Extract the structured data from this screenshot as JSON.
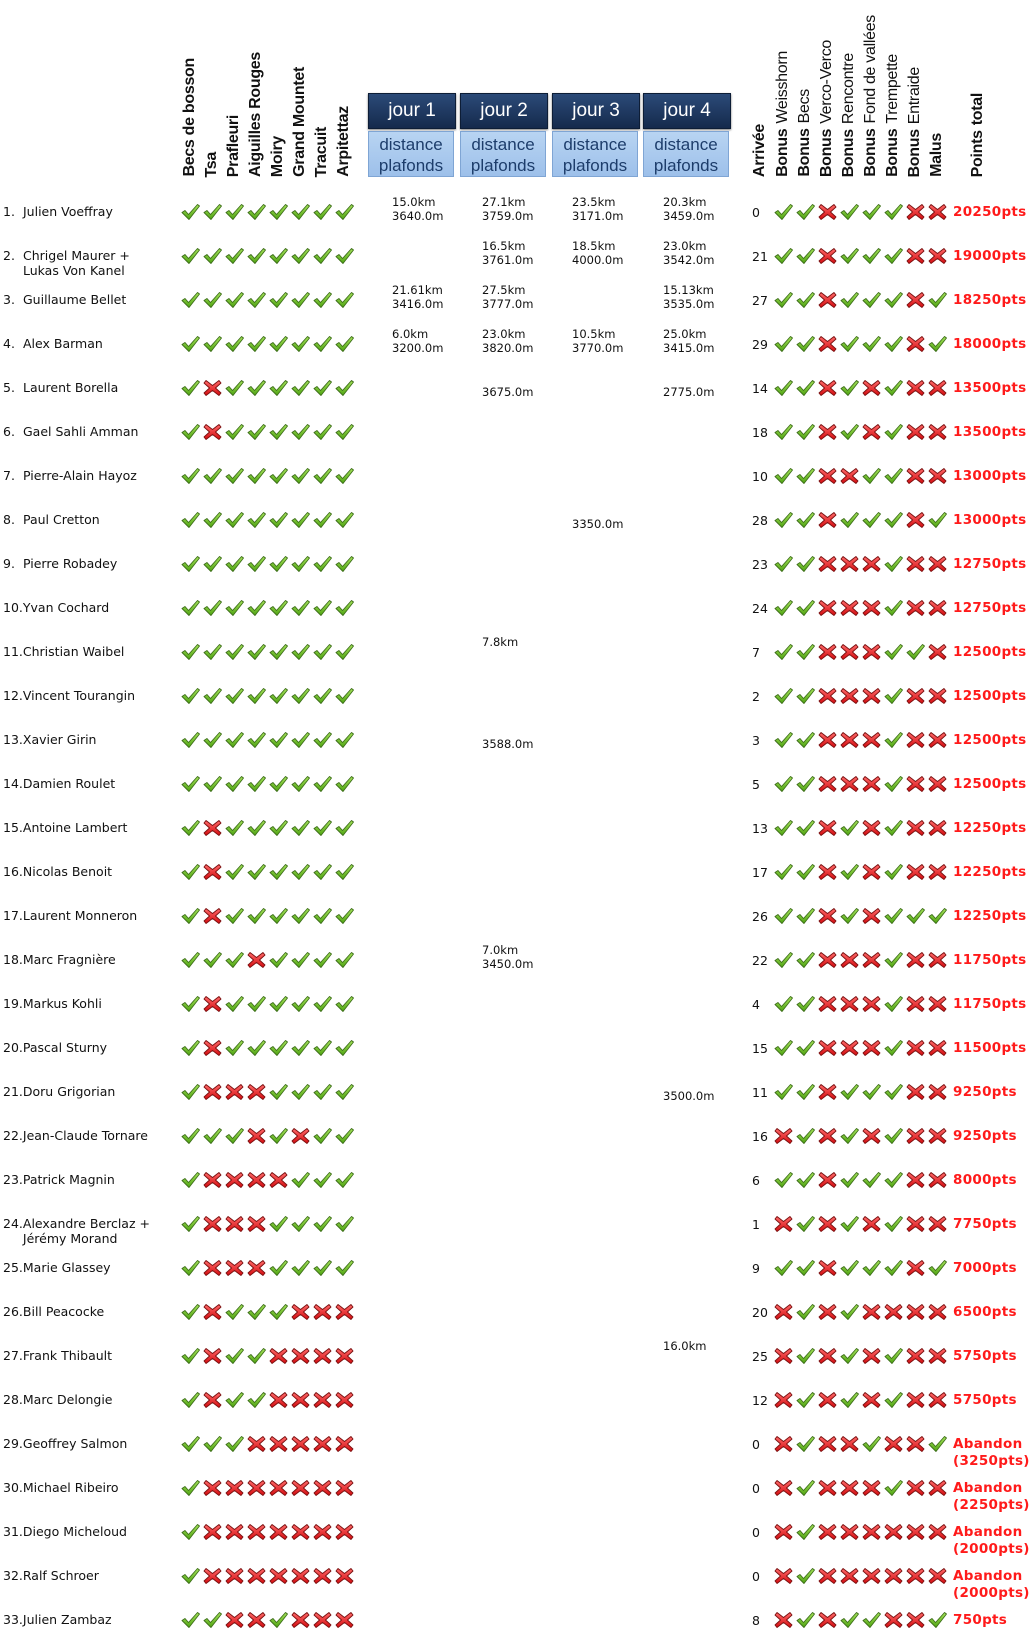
{
  "header": {
    "balises": [
      "Becs de bosson",
      "Tsa",
      "Prafleuri",
      "Aiguilles Rouges",
      "Moiry",
      "Grand Mountet",
      "Tracuit",
      "Arpitettaz"
    ],
    "jours": [
      {
        "label": "jour 1",
        "sub1": "distance",
        "sub2": "plafonds"
      },
      {
        "label": "jour 2",
        "sub1": "distance",
        "sub2": "plafonds"
      },
      {
        "label": "jour 3",
        "sub1": "distance",
        "sub2": "plafonds"
      },
      {
        "label": "jour 4",
        "sub1": "distance",
        "sub2": "plafonds"
      }
    ],
    "arrivee": "Arrivée",
    "bonus_prefix": "Bonus",
    "bonus": [
      "Weisshorn",
      "Becs",
      "Verco-Verco",
      "Rencontre",
      "Fond de vallées",
      "Trempette",
      "Entraide"
    ],
    "malus": "Malus",
    "points_total_1": "Points",
    "points_total_2": "total"
  },
  "colors": {
    "check": "#6cc31f",
    "cross": "#e8141a",
    "points": "#ff1a1a",
    "jour_bg": "#1f3a62",
    "sub_bg": "#a9c8ee"
  },
  "icons": {
    "yes": "green-check-icon",
    "no": "red-cross-icon"
  },
  "rows": [
    {
      "rank": "1.",
      "name": [
        "Julien Voeffray"
      ],
      "balises": [
        1,
        1,
        1,
        1,
        1,
        1,
        1,
        1
      ],
      "jours": [
        [
          "15.0km",
          "3640.0m"
        ],
        [
          "27.1km",
          "3759.0m"
        ],
        [
          "23.5km",
          "3171.0m"
        ],
        [
          "20.3km",
          "3459.0m"
        ]
      ],
      "arrivee": "0",
      "bonus": [
        1,
        1,
        0,
        1,
        1,
        1,
        0
      ],
      "malus": 0,
      "points": [
        "20250pts"
      ]
    },
    {
      "rank": "2.",
      "name": [
        "Chrigel Maurer +",
        "Lukas Von Kanel"
      ],
      "balises": [
        1,
        1,
        1,
        1,
        1,
        1,
        1,
        1
      ],
      "jours": [
        null,
        [
          "16.5km",
          "3761.0m"
        ],
        [
          "18.5km",
          "4000.0m"
        ],
        [
          "23.0km",
          "3542.0m"
        ]
      ],
      "arrivee": "21",
      "bonus": [
        1,
        1,
        0,
        1,
        1,
        1,
        0
      ],
      "malus": 0,
      "points": [
        "19000pts"
      ]
    },
    {
      "rank": "3.",
      "name": [
        "Guillaume Bellet"
      ],
      "balises": [
        1,
        1,
        1,
        1,
        1,
        1,
        1,
        1
      ],
      "jours": [
        [
          "21.61km",
          "3416.0m"
        ],
        [
          "27.5km",
          "3777.0m"
        ],
        null,
        [
          "15.13km",
          "3535.0m"
        ]
      ],
      "arrivee": "27",
      "bonus": [
        1,
        1,
        0,
        1,
        1,
        1,
        0
      ],
      "malus": 1,
      "points": [
        "18250pts"
      ]
    },
    {
      "rank": "4.",
      "name": [
        "Alex Barman"
      ],
      "balises": [
        1,
        1,
        1,
        1,
        1,
        1,
        1,
        1
      ],
      "jours": [
        [
          "6.0km",
          "3200.0m"
        ],
        [
          "23.0km",
          "3820.0m"
        ],
        [
          "10.5km",
          "3770.0m"
        ],
        [
          "25.0km",
          "3415.0m"
        ]
      ],
      "arrivee": "29",
      "bonus": [
        1,
        1,
        0,
        1,
        1,
        1,
        0
      ],
      "malus": 1,
      "points": [
        "18000pts"
      ]
    },
    {
      "rank": "5.",
      "name": [
        "Laurent Borella"
      ],
      "balises": [
        1,
        0,
        1,
        1,
        1,
        1,
        1,
        1
      ],
      "jours": [
        null,
        [
          "",
          "3675.0m"
        ],
        null,
        [
          "",
          "2775.0m"
        ]
      ],
      "arrivee": "14",
      "bonus": [
        1,
        1,
        0,
        1,
        0,
        1,
        0
      ],
      "malus": 0,
      "points": [
        "13500pts"
      ]
    },
    {
      "rank": "6.",
      "name": [
        "Gael Sahli Amman"
      ],
      "balises": [
        1,
        0,
        1,
        1,
        1,
        1,
        1,
        1
      ],
      "jours": [
        null,
        null,
        null,
        null
      ],
      "arrivee": "18",
      "bonus": [
        1,
        1,
        0,
        1,
        0,
        1,
        0
      ],
      "malus": 0,
      "points": [
        "13500pts"
      ]
    },
    {
      "rank": "7.",
      "name": [
        "Pierre-Alain Hayoz"
      ],
      "balises": [
        1,
        1,
        1,
        1,
        1,
        1,
        1,
        1
      ],
      "jours": [
        null,
        null,
        null,
        null
      ],
      "arrivee": "10",
      "bonus": [
        1,
        1,
        0,
        0,
        1,
        1,
        0
      ],
      "malus": 0,
      "points": [
        "13000pts"
      ]
    },
    {
      "rank": "8.",
      "name": [
        "Paul Cretton"
      ],
      "balises": [
        1,
        1,
        1,
        1,
        1,
        1,
        1,
        1
      ],
      "jours": [
        null,
        null,
        [
          "",
          "3350.0m"
        ],
        null
      ],
      "arrivee": "28",
      "bonus": [
        1,
        1,
        0,
        1,
        1,
        1,
        0
      ],
      "malus": 1,
      "points": [
        "13000pts"
      ]
    },
    {
      "rank": "9.",
      "name": [
        "Pierre Robadey"
      ],
      "balises": [
        1,
        1,
        1,
        1,
        1,
        1,
        1,
        1
      ],
      "jours": [
        null,
        null,
        null,
        null
      ],
      "arrivee": "23",
      "bonus": [
        1,
        1,
        0,
        0,
        0,
        1,
        0
      ],
      "malus": 0,
      "points": [
        "12750pts"
      ]
    },
    {
      "rank": "10.",
      "name": [
        "Yvan Cochard"
      ],
      "balises": [
        1,
        1,
        1,
        1,
        1,
        1,
        1,
        1
      ],
      "jours": [
        null,
        null,
        null,
        null
      ],
      "arrivee": "24",
      "bonus": [
        1,
        1,
        0,
        0,
        0,
        1,
        0
      ],
      "malus": 0,
      "points": [
        "12750pts"
      ]
    },
    {
      "rank": "11.",
      "name": [
        "Christian Waibel"
      ],
      "balises": [
        1,
        1,
        1,
        1,
        1,
        1,
        1,
        1
      ],
      "jours": [
        null,
        [
          "7.8km",
          ""
        ],
        null,
        null
      ],
      "arrivee": "7",
      "bonus": [
        1,
        1,
        0,
        0,
        0,
        1,
        1
      ],
      "malus": 0,
      "points": [
        "12500pts"
      ]
    },
    {
      "rank": "12.",
      "name": [
        "Vincent Tourangin"
      ],
      "balises": [
        1,
        1,
        1,
        1,
        1,
        1,
        1,
        1
      ],
      "jours": [
        null,
        null,
        null,
        null
      ],
      "arrivee": "2",
      "bonus": [
        1,
        1,
        0,
        0,
        0,
        1,
        0
      ],
      "malus": 0,
      "points": [
        "12500pts"
      ]
    },
    {
      "rank": "13.",
      "name": [
        "Xavier Girin"
      ],
      "balises": [
        1,
        1,
        1,
        1,
        1,
        1,
        1,
        1
      ],
      "jours": [
        null,
        [
          "",
          "3588.0m"
        ],
        null,
        null
      ],
      "arrivee": "3",
      "bonus": [
        1,
        1,
        0,
        0,
        0,
        1,
        0
      ],
      "malus": 0,
      "points": [
        "12500pts"
      ]
    },
    {
      "rank": "14.",
      "name": [
        "Damien Roulet"
      ],
      "balises": [
        1,
        1,
        1,
        1,
        1,
        1,
        1,
        1
      ],
      "jours": [
        null,
        null,
        null,
        null
      ],
      "arrivee": "5",
      "bonus": [
        1,
        1,
        0,
        0,
        0,
        1,
        0
      ],
      "malus": 0,
      "points": [
        "12500pts"
      ]
    },
    {
      "rank": "15.",
      "name": [
        "Antoine Lambert"
      ],
      "balises": [
        1,
        0,
        1,
        1,
        1,
        1,
        1,
        1
      ],
      "jours": [
        null,
        null,
        null,
        null
      ],
      "arrivee": "13",
      "bonus": [
        1,
        1,
        0,
        1,
        0,
        1,
        0
      ],
      "malus": 0,
      "points": [
        "12250pts"
      ]
    },
    {
      "rank": "16.",
      "name": [
        "Nicolas Benoit"
      ],
      "balises": [
        1,
        0,
        1,
        1,
        1,
        1,
        1,
        1
      ],
      "jours": [
        null,
        null,
        null,
        null
      ],
      "arrivee": "17",
      "bonus": [
        1,
        1,
        0,
        1,
        0,
        1,
        0
      ],
      "malus": 0,
      "points": [
        "12250pts"
      ]
    },
    {
      "rank": "17.",
      "name": [
        "Laurent Monneron"
      ],
      "balises": [
        1,
        0,
        1,
        1,
        1,
        1,
        1,
        1
      ],
      "jours": [
        null,
        null,
        null,
        null
      ],
      "arrivee": "26",
      "bonus": [
        1,
        1,
        0,
        1,
        0,
        1,
        1
      ],
      "malus": 1,
      "points": [
        "12250pts"
      ]
    },
    {
      "rank": "18.",
      "name": [
        "Marc Fragnière"
      ],
      "balises": [
        1,
        1,
        1,
        0,
        1,
        1,
        1,
        1
      ],
      "jours": [
        null,
        [
          "7.0km",
          "3450.0m"
        ],
        null,
        null
      ],
      "arrivee": "22",
      "bonus": [
        1,
        1,
        0,
        0,
        0,
        1,
        0
      ],
      "malus": 0,
      "points": [
        "11750pts"
      ]
    },
    {
      "rank": "19.",
      "name": [
        "Markus Kohli"
      ],
      "balises": [
        1,
        0,
        1,
        1,
        1,
        1,
        1,
        1
      ],
      "jours": [
        null,
        null,
        null,
        null
      ],
      "arrivee": "4",
      "bonus": [
        1,
        1,
        0,
        0,
        0,
        1,
        0
      ],
      "malus": 0,
      "points": [
        "11750pts"
      ]
    },
    {
      "rank": "20.",
      "name": [
        "Pascal Sturny"
      ],
      "balises": [
        1,
        0,
        1,
        1,
        1,
        1,
        1,
        1
      ],
      "jours": [
        null,
        null,
        null,
        null
      ],
      "arrivee": "15",
      "bonus": [
        1,
        1,
        0,
        0,
        0,
        1,
        0
      ],
      "malus": 0,
      "points": [
        "11500pts"
      ]
    },
    {
      "rank": "21.",
      "name": [
        "Doru Grigorian"
      ],
      "balises": [
        1,
        0,
        0,
        0,
        1,
        1,
        1,
        1
      ],
      "jours": [
        null,
        null,
        null,
        [
          "",
          "3500.0m"
        ]
      ],
      "arrivee": "11",
      "bonus": [
        1,
        1,
        0,
        1,
        1,
        1,
        0
      ],
      "malus": 0,
      "points": [
        "9250pts"
      ]
    },
    {
      "rank": "22.",
      "name": [
        "Jean-Claude Tornare"
      ],
      "balises": [
        1,
        1,
        1,
        0,
        1,
        0,
        1,
        1
      ],
      "jours": [
        null,
        null,
        null,
        null
      ],
      "arrivee": "16",
      "bonus": [
        0,
        1,
        0,
        1,
        0,
        1,
        0
      ],
      "malus": 0,
      "points": [
        "9250pts"
      ]
    },
    {
      "rank": "23.",
      "name": [
        "Patrick Magnin"
      ],
      "balises": [
        1,
        0,
        0,
        0,
        0,
        1,
        1,
        1
      ],
      "jours": [
        null,
        null,
        null,
        null
      ],
      "arrivee": "6",
      "bonus": [
        1,
        1,
        0,
        1,
        1,
        1,
        0
      ],
      "malus": 0,
      "points": [
        "8000pts"
      ]
    },
    {
      "rank": "24.",
      "name": [
        "Alexandre Berclaz +",
        "Jérémy Morand"
      ],
      "balises": [
        1,
        0,
        0,
        0,
        1,
        1,
        1,
        1
      ],
      "jours": [
        null,
        null,
        null,
        null
      ],
      "arrivee": "1",
      "bonus": [
        0,
        1,
        0,
        1,
        0,
        1,
        0
      ],
      "malus": 0,
      "points": [
        "7750pts"
      ]
    },
    {
      "rank": "25.",
      "name": [
        "Marie Glassey"
      ],
      "balises": [
        1,
        0,
        0,
        0,
        1,
        1,
        1,
        1
      ],
      "jours": [
        null,
        null,
        null,
        null
      ],
      "arrivee": "9",
      "bonus": [
        1,
        1,
        0,
        1,
        1,
        1,
        0
      ],
      "malus": 1,
      "points": [
        "7000pts"
      ]
    },
    {
      "rank": "26.",
      "name": [
        "Bill Peacocke"
      ],
      "balises": [
        1,
        0,
        1,
        1,
        1,
        0,
        0,
        0
      ],
      "jours": [
        null,
        null,
        null,
        null
      ],
      "arrivee": "20",
      "bonus": [
        0,
        1,
        0,
        1,
        0,
        0,
        0
      ],
      "malus": 0,
      "points": [
        "6500pts"
      ]
    },
    {
      "rank": "27.",
      "name": [
        "Frank Thibault"
      ],
      "balises": [
        1,
        0,
        1,
        1,
        0,
        0,
        0,
        0
      ],
      "jours": [
        null,
        null,
        null,
        [
          "16.0km",
          ""
        ]
      ],
      "arrivee": "25",
      "bonus": [
        0,
        1,
        0,
        1,
        0,
        1,
        0
      ],
      "malus": 0,
      "points": [
        "5750pts"
      ]
    },
    {
      "rank": "28.",
      "name": [
        "Marc Delongie"
      ],
      "balises": [
        1,
        0,
        1,
        1,
        0,
        0,
        0,
        0
      ],
      "jours": [
        null,
        null,
        null,
        null
      ],
      "arrivee": "12",
      "bonus": [
        0,
        1,
        0,
        1,
        0,
        1,
        0
      ],
      "malus": 0,
      "points": [
        "5750pts"
      ]
    },
    {
      "rank": "29.",
      "name": [
        "Geoffrey Salmon"
      ],
      "balises": [
        1,
        1,
        1,
        0,
        0,
        0,
        0,
        0
      ],
      "jours": [
        null,
        null,
        null,
        null
      ],
      "arrivee": "0",
      "bonus": [
        0,
        1,
        0,
        0,
        1,
        0,
        0
      ],
      "malus": 1,
      "points": [
        "Abandon",
        "(3250pts)"
      ]
    },
    {
      "rank": "30.",
      "name": [
        "Michael Ribeiro"
      ],
      "balises": [
        1,
        0,
        0,
        0,
        0,
        0,
        0,
        0
      ],
      "jours": [
        null,
        null,
        null,
        null
      ],
      "arrivee": "0",
      "bonus": [
        0,
        1,
        0,
        0,
        0,
        1,
        0
      ],
      "malus": 0,
      "points": [
        "Abandon",
        "(2250pts)"
      ]
    },
    {
      "rank": "31.",
      "name": [
        "Diego Micheloud"
      ],
      "balises": [
        1,
        0,
        0,
        0,
        0,
        0,
        0,
        0
      ],
      "jours": [
        null,
        null,
        null,
        null
      ],
      "arrivee": "0",
      "bonus": [
        0,
        1,
        0,
        0,
        0,
        0,
        0
      ],
      "malus": 0,
      "points": [
        "Abandon",
        "(2000pts)"
      ]
    },
    {
      "rank": "32.",
      "name": [
        "Ralf Schroer"
      ],
      "balises": [
        1,
        0,
        0,
        0,
        0,
        0,
        0,
        0
      ],
      "jours": [
        null,
        null,
        null,
        null
      ],
      "arrivee": "0",
      "bonus": [
        0,
        1,
        0,
        0,
        0,
        0,
        0
      ],
      "malus": 0,
      "points": [
        "Abandon",
        "(2000pts)"
      ]
    },
    {
      "rank": "33.",
      "name": [
        "Julien Zambaz"
      ],
      "balises": [
        1,
        1,
        0,
        0,
        1,
        0,
        0,
        0
      ],
      "jours": [
        null,
        null,
        null,
        null
      ],
      "arrivee": "8",
      "bonus": [
        0,
        1,
        0,
        1,
        1,
        0,
        0
      ],
      "malus": 1,
      "points": [
        "750pts"
      ]
    }
  ]
}
